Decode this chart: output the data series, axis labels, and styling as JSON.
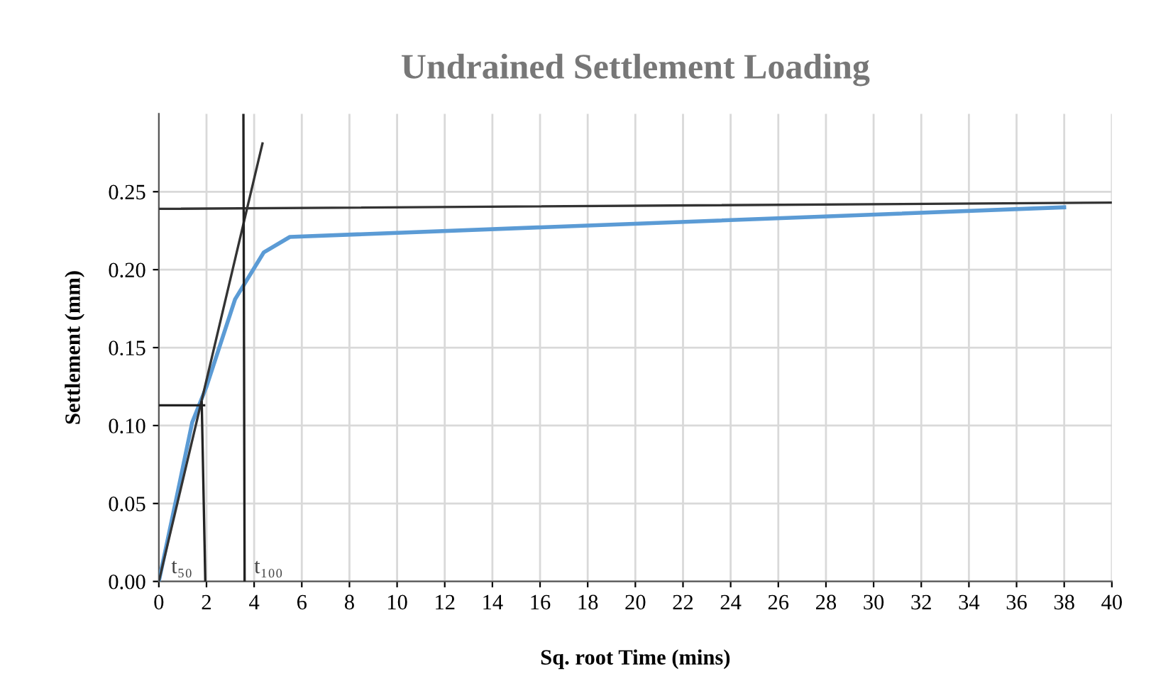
{
  "chart_data": {
    "type": "line",
    "title": "Undrained Settlement Loading",
    "xlabel": "Sq. root Time (mins)",
    "ylabel": "Settlement (mm)",
    "xlim": [
      0,
      40
    ],
    "xticks": [
      0,
      2,
      4,
      6,
      8,
      10,
      12,
      14,
      16,
      18,
      20,
      22,
      24,
      26,
      28,
      30,
      32,
      34,
      36,
      38,
      40
    ],
    "ylim": [
      0,
      0.3
    ],
    "yticks": [
      {
        "value": 0,
        "label": "0.00"
      },
      {
        "value": 0.05,
        "label": "0.05"
      },
      {
        "value": 0.1,
        "label": "0.10"
      },
      {
        "value": 0.15,
        "label": "0.15"
      },
      {
        "value": 0.2,
        "label": "0.20"
      },
      {
        "value": 0.25,
        "label": "0.25"
      }
    ],
    "grid": true,
    "legend": false,
    "marker": "none",
    "line_style": "solid",
    "series": [
      {
        "color": "#5b9bd5",
        "x": [
          0,
          0.8,
          1.4,
          2.0,
          3.2,
          4.4,
          5.5,
          38
        ],
        "values": [
          0,
          0.058,
          0.102,
          0.125,
          0.181,
          0.211,
          0.221,
          0.24
        ]
      },
      {
        "color": "#333333",
        "x": [
          0,
          4.35
        ],
        "values": [
          0,
          0.281
        ]
      },
      {
        "color": "#333333",
        "x": [
          0,
          40
        ],
        "values": [
          0.239,
          0.243
        ]
      },
      {
        "color": "#222222",
        "x": [
          0,
          1.9
        ],
        "values": [
          0.113,
          0.113
        ]
      },
      {
        "color": "#222222",
        "x": [
          1.8,
          1.95
        ],
        "values": [
          0.115,
          0
        ]
      },
      {
        "color": "#222222",
        "x": [
          3.55,
          3.6
        ],
        "values": [
          0.3,
          0
        ]
      }
    ],
    "annotations": [
      "t₅₀",
      "t₁₀₀"
    ]
  }
}
